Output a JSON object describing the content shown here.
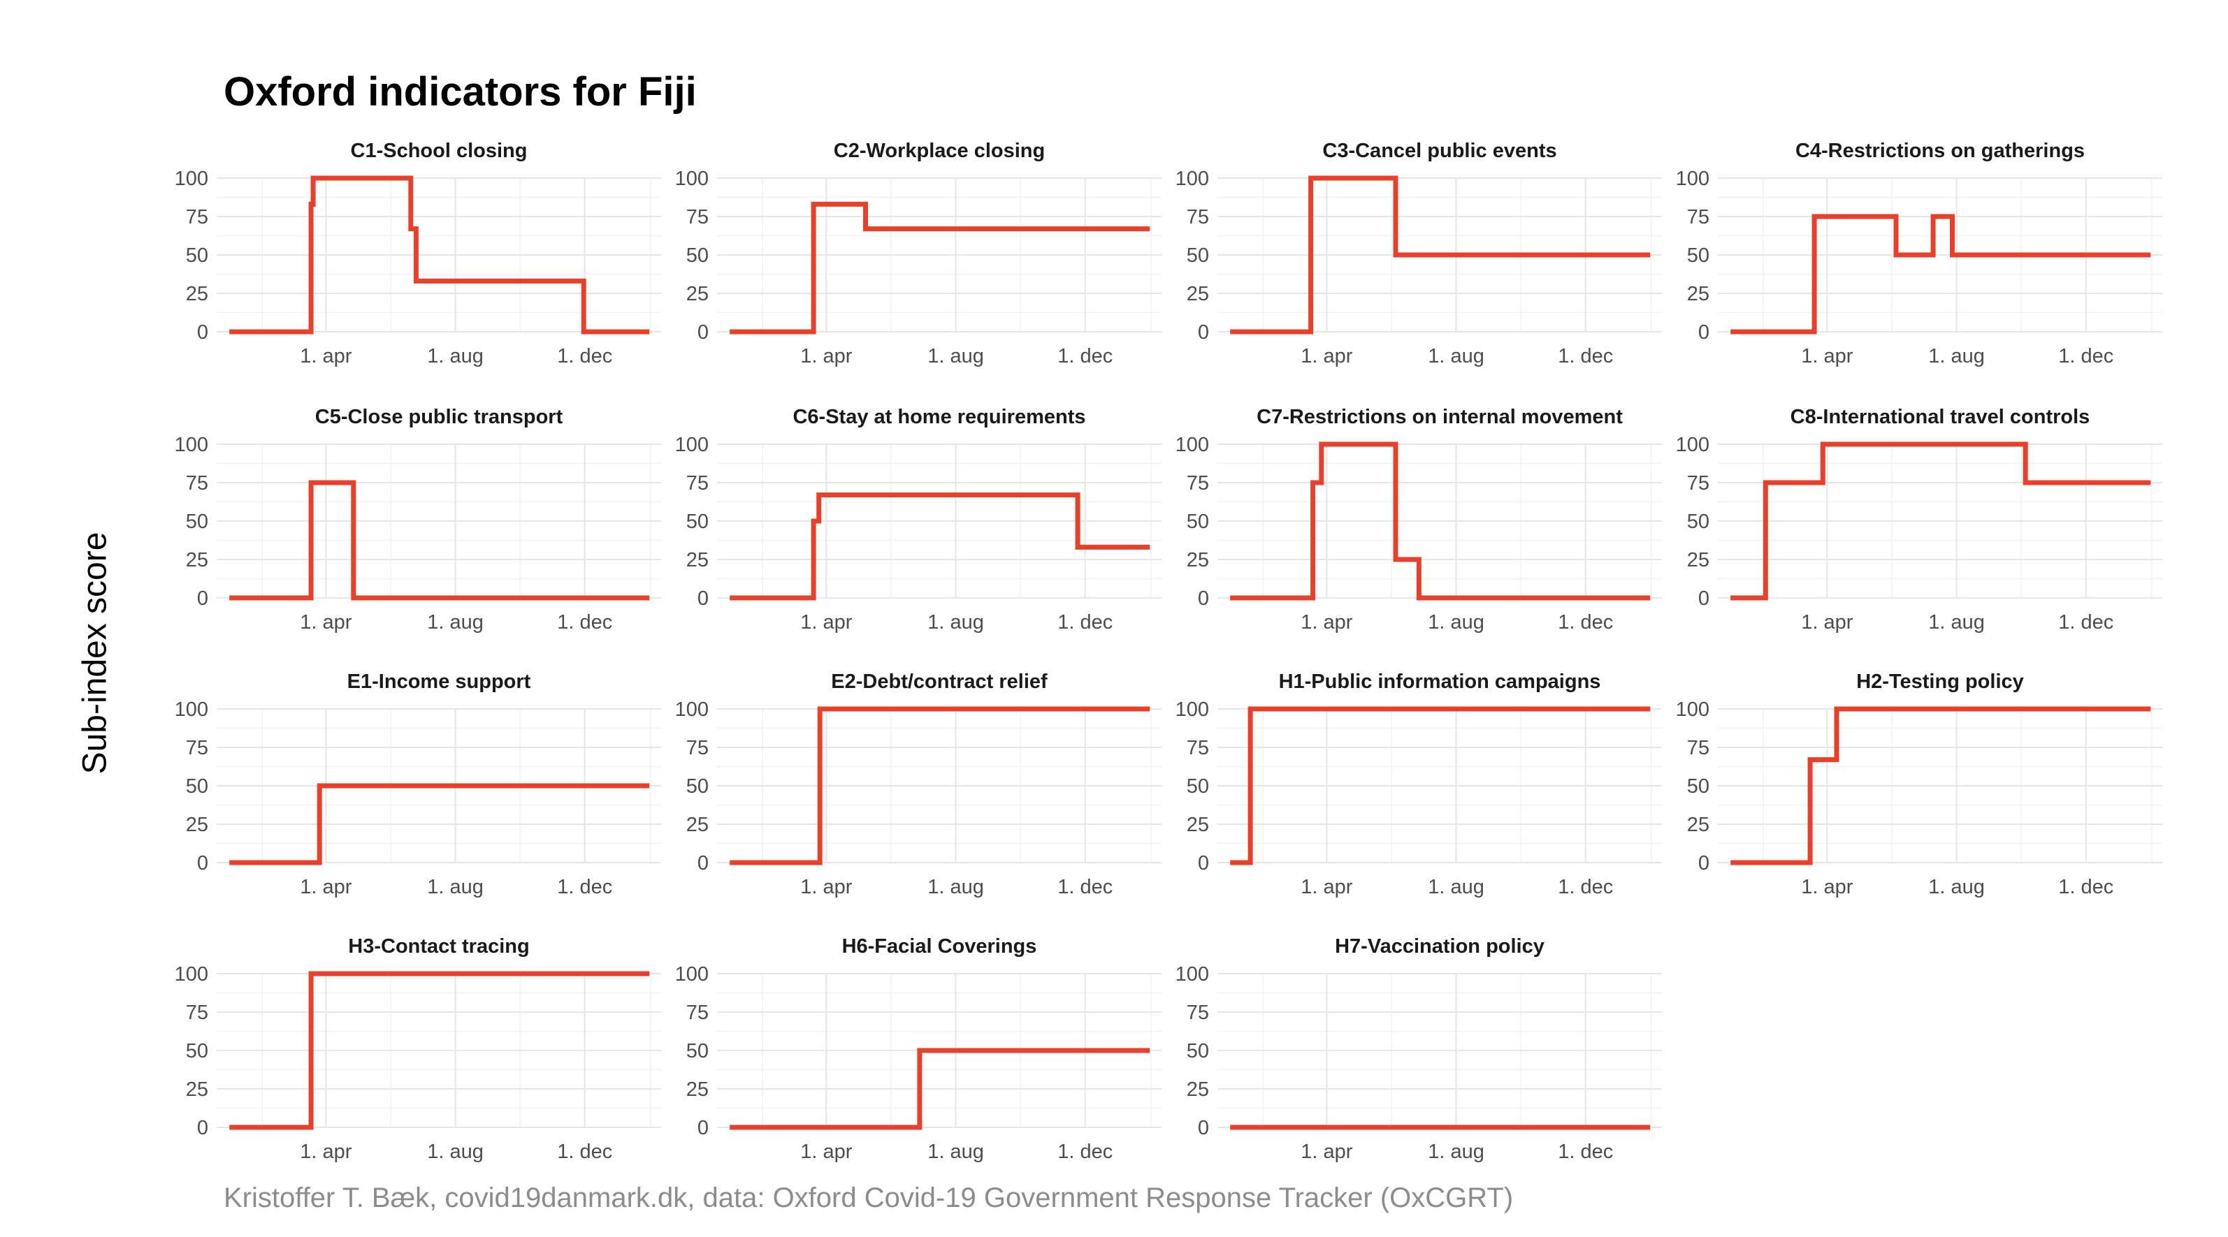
{
  "title": "Oxford indicators for Fiji",
  "ylabel": "Sub-index score",
  "caption": "Kristoffer T. Bæk, covid19danmark.dk, data: Oxford Covid-19 Government Response Tracker (OxCGRT)",
  "colors": {
    "series": "#e8402a"
  },
  "chart_data": {
    "type": "line",
    "layout": "facet grid, 4 columns x 4 rows",
    "shared_axes": {
      "x_tick_labels": [
        "1. apr",
        "1. aug",
        "1. dec"
      ],
      "y_ticks": [
        0,
        25,
        50,
        75,
        100
      ],
      "ylim": [
        0,
        100
      ],
      "grid": true
    },
    "panels": [
      {
        "title": "C1-School closing",
        "points": [
          [
            "2020-01-01",
            0
          ],
          [
            "2020-03-18",
            0
          ],
          [
            "2020-03-18",
            83
          ],
          [
            "2020-03-20",
            83
          ],
          [
            "2020-03-20",
            100
          ],
          [
            "2020-06-20",
            100
          ],
          [
            "2020-06-20",
            67
          ],
          [
            "2020-06-25",
            67
          ],
          [
            "2020-06-25",
            33
          ],
          [
            "2020-11-30",
            33
          ],
          [
            "2020-11-30",
            0
          ],
          [
            "2021-01-31",
            0
          ]
        ]
      },
      {
        "title": "C2-Workplace closing",
        "points": [
          [
            "2020-01-01",
            0
          ],
          [
            "2020-03-20",
            0
          ],
          [
            "2020-03-20",
            83
          ],
          [
            "2020-05-08",
            83
          ],
          [
            "2020-05-08",
            67
          ],
          [
            "2021-01-31",
            67
          ]
        ]
      },
      {
        "title": "C3-Cancel public events",
        "points": [
          [
            "2020-01-01",
            0
          ],
          [
            "2020-03-17",
            0
          ],
          [
            "2020-03-17",
            100
          ],
          [
            "2020-06-05",
            100
          ],
          [
            "2020-06-05",
            50
          ],
          [
            "2021-01-31",
            50
          ]
        ]
      },
      {
        "title": "C4-Restrictions on gatherings",
        "points": [
          [
            "2020-01-01",
            0
          ],
          [
            "2020-03-20",
            0
          ],
          [
            "2020-03-20",
            75
          ],
          [
            "2020-06-05",
            75
          ],
          [
            "2020-06-05",
            50
          ],
          [
            "2020-07-10",
            50
          ],
          [
            "2020-07-10",
            75
          ],
          [
            "2020-07-28",
            75
          ],
          [
            "2020-07-28",
            50
          ],
          [
            "2021-01-31",
            50
          ]
        ]
      },
      {
        "title": "C5-Close public transport",
        "points": [
          [
            "2020-01-01",
            0
          ],
          [
            "2020-03-18",
            0
          ],
          [
            "2020-03-18",
            75
          ],
          [
            "2020-04-27",
            75
          ],
          [
            "2020-04-27",
            0
          ],
          [
            "2021-01-31",
            0
          ]
        ]
      },
      {
        "title": "C6-Stay at home requirements",
        "points": [
          [
            "2020-01-01",
            0
          ],
          [
            "2020-03-20",
            0
          ],
          [
            "2020-03-20",
            50
          ],
          [
            "2020-03-25",
            50
          ],
          [
            "2020-03-25",
            67
          ],
          [
            "2020-11-24",
            67
          ],
          [
            "2020-11-24",
            33
          ],
          [
            "2021-01-31",
            33
          ]
        ]
      },
      {
        "title": "C7-Restrictions on internal movement",
        "points": [
          [
            "2020-01-01",
            0
          ],
          [
            "2020-03-19",
            0
          ],
          [
            "2020-03-19",
            75
          ],
          [
            "2020-03-27",
            75
          ],
          [
            "2020-03-27",
            100
          ],
          [
            "2020-06-05",
            100
          ],
          [
            "2020-06-05",
            25
          ],
          [
            "2020-06-27",
            25
          ],
          [
            "2020-06-27",
            0
          ],
          [
            "2021-01-31",
            0
          ]
        ]
      },
      {
        "title": "C8-International travel controls",
        "points": [
          [
            "2020-01-01",
            0
          ],
          [
            "2020-02-03",
            0
          ],
          [
            "2020-02-03",
            75
          ],
          [
            "2020-03-28",
            75
          ],
          [
            "2020-03-28",
            100
          ],
          [
            "2020-10-05",
            100
          ],
          [
            "2020-10-05",
            75
          ],
          [
            "2021-01-31",
            75
          ]
        ]
      },
      {
        "title": "E1-Income support",
        "points": [
          [
            "2020-01-01",
            0
          ],
          [
            "2020-03-26",
            0
          ],
          [
            "2020-03-26",
            50
          ],
          [
            "2021-01-31",
            50
          ]
        ]
      },
      {
        "title": "E2-Debt/contract relief",
        "points": [
          [
            "2020-01-01",
            0
          ],
          [
            "2020-03-26",
            0
          ],
          [
            "2020-03-26",
            100
          ],
          [
            "2021-01-31",
            100
          ]
        ]
      },
      {
        "title": "H1-Public information campaigns",
        "points": [
          [
            "2020-01-01",
            0
          ],
          [
            "2020-01-20",
            0
          ],
          [
            "2020-01-20",
            100
          ],
          [
            "2021-01-31",
            100
          ]
        ]
      },
      {
        "title": "H2-Testing policy",
        "points": [
          [
            "2020-01-01",
            0
          ],
          [
            "2020-03-16",
            0
          ],
          [
            "2020-03-16",
            67
          ],
          [
            "2020-04-10",
            67
          ],
          [
            "2020-04-10",
            100
          ],
          [
            "2021-01-31",
            100
          ]
        ]
      },
      {
        "title": "H3-Contact tracing",
        "points": [
          [
            "2020-01-01",
            0
          ],
          [
            "2020-03-18",
            0
          ],
          [
            "2020-03-18",
            100
          ],
          [
            "2021-01-31",
            100
          ]
        ]
      },
      {
        "title": "H6-Facial Coverings",
        "points": [
          [
            "2020-01-01",
            0
          ],
          [
            "2020-06-28",
            0
          ],
          [
            "2020-06-28",
            50
          ],
          [
            "2021-01-31",
            50
          ]
        ]
      },
      {
        "title": "H7-Vaccination policy",
        "points": [
          [
            "2020-01-01",
            0
          ],
          [
            "2021-01-31",
            0
          ]
        ]
      }
    ]
  }
}
